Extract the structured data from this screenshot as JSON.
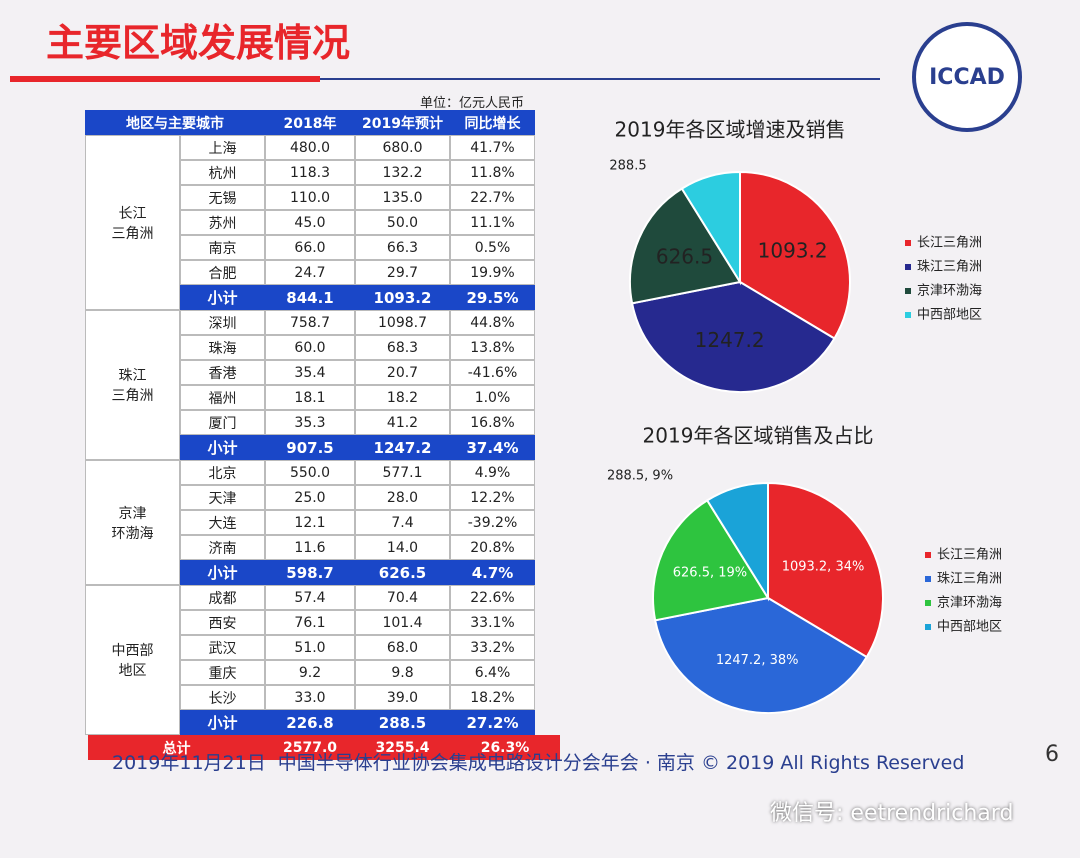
{
  "header": {
    "title": "主要区域发展情况",
    "logo": "ICCAD"
  },
  "table": {
    "unit": "单位：亿元人民币",
    "columns": [
      "地区与主要城市",
      "2018年",
      "2019年预计",
      "同比增长"
    ],
    "groups": [
      {
        "region": [
          "长江",
          "三角洲"
        ],
        "rows": [
          [
            "上海",
            "480.0",
            "680.0",
            "41.7%"
          ],
          [
            "杭州",
            "118.3",
            "132.2",
            "11.8%"
          ],
          [
            "无锡",
            "110.0",
            "135.0",
            "22.7%"
          ],
          [
            "苏州",
            "45.0",
            "50.0",
            "11.1%"
          ],
          [
            "南京",
            "66.0",
            "66.3",
            "0.5%"
          ],
          [
            "合肥",
            "24.7",
            "29.7",
            "19.9%"
          ]
        ],
        "subtotal": [
          "小计",
          "844.1",
          "1093.2",
          "29.5%"
        ]
      },
      {
        "region": [
          "珠江",
          "三角洲"
        ],
        "rows": [
          [
            "深圳",
            "758.7",
            "1098.7",
            "44.8%"
          ],
          [
            "珠海",
            "60.0",
            "68.3",
            "13.8%"
          ],
          [
            "香港",
            "35.4",
            "20.7",
            "-41.6%"
          ],
          [
            "福州",
            "18.1",
            "18.2",
            "1.0%"
          ],
          [
            "厦门",
            "35.3",
            "41.2",
            "16.8%"
          ]
        ],
        "subtotal": [
          "小计",
          "907.5",
          "1247.2",
          "37.4%"
        ]
      },
      {
        "region": [
          "京津",
          "环渤海"
        ],
        "rows": [
          [
            "北京",
            "550.0",
            "577.1",
            "4.9%"
          ],
          [
            "天津",
            "25.0",
            "28.0",
            "12.2%"
          ],
          [
            "大连",
            "12.1",
            "7.4",
            "-39.2%"
          ],
          [
            "济南",
            "11.6",
            "14.0",
            "20.8%"
          ]
        ],
        "subtotal": [
          "小计",
          "598.7",
          "626.5",
          "4.7%"
        ]
      },
      {
        "region": [
          "中西部",
          "地区"
        ],
        "rows": [
          [
            "成都",
            "57.4",
            "70.4",
            "22.6%"
          ],
          [
            "西安",
            "76.1",
            "101.4",
            "33.1%"
          ],
          [
            "武汉",
            "51.0",
            "68.0",
            "33.2%"
          ],
          [
            "重庆",
            "9.2",
            "9.8",
            "6.4%"
          ],
          [
            "长沙",
            "33.0",
            "39.0",
            "18.2%"
          ]
        ],
        "subtotal": [
          "小计",
          "226.8",
          "288.5",
          "27.2%"
        ]
      }
    ],
    "total": [
      "总计",
      "2577.0",
      "3255.4",
      "26.3%"
    ]
  },
  "chart_data": [
    {
      "type": "pie",
      "title": "2019年各区域增速及销售",
      "categories": [
        "长江三角洲",
        "珠江三角洲",
        "京津环渤海",
        "中西部地区"
      ],
      "values": [
        1093.2,
        1247.2,
        626.5,
        288.5
      ],
      "colors": [
        "#e8262b",
        "#26298f",
        "#1f4a3c",
        "#2ccde0"
      ]
    },
    {
      "type": "pie",
      "title": "2019年各区域销售及占比",
      "categories": [
        "长江三角洲",
        "珠江三角洲",
        "京津环渤海",
        "中西部地区"
      ],
      "values": [
        1093.2,
        1247.2,
        626.5,
        288.5
      ],
      "value_labels": [
        "1093.2, 34%",
        "1247.2, 38%",
        "626.5, 19%",
        "288.5, 9%"
      ],
      "colors": [
        "#e8262b",
        "#2a67d8",
        "#2ec43f",
        "#1aa3d8"
      ]
    }
  ],
  "footer": {
    "text": "2019年11月21日  中国半导体行业协会集成电路设计分会年会 · 南京 © 2019 All Rights Reserved",
    "page": "6"
  },
  "watermark": "微信号: eetrendrichard"
}
